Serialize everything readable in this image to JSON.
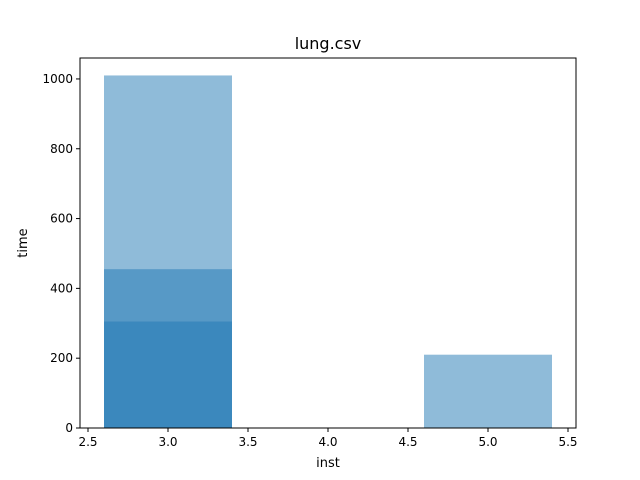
{
  "chart_data": {
    "type": "bar",
    "title": "lung.csv",
    "xlabel": "inst",
    "ylabel": "time",
    "xlim": [
      2.45,
      5.55
    ],
    "ylim": [
      0,
      1060
    ],
    "x_ticks": [
      2.5,
      3.0,
      3.5,
      4.0,
      4.5,
      5.0,
      5.5
    ],
    "x_tick_labels": [
      "2.5",
      "3.0",
      "3.5",
      "4.0",
      "4.5",
      "5.0",
      "5.5"
    ],
    "y_ticks": [
      0,
      200,
      400,
      600,
      800,
      1000
    ],
    "y_tick_labels": [
      "0",
      "200",
      "400",
      "600",
      "800",
      "1000"
    ],
    "bar_width": 0.8,
    "bar_color": "#1f77b4",
    "bar_alpha": 0.5,
    "grid": false,
    "legend": "none",
    "bars": [
      {
        "x": 3.0,
        "value": 1010
      },
      {
        "x": 3.0,
        "value": 455
      },
      {
        "x": 3.0,
        "value": 305
      },
      {
        "x": 5.0,
        "value": 210
      }
    ]
  }
}
